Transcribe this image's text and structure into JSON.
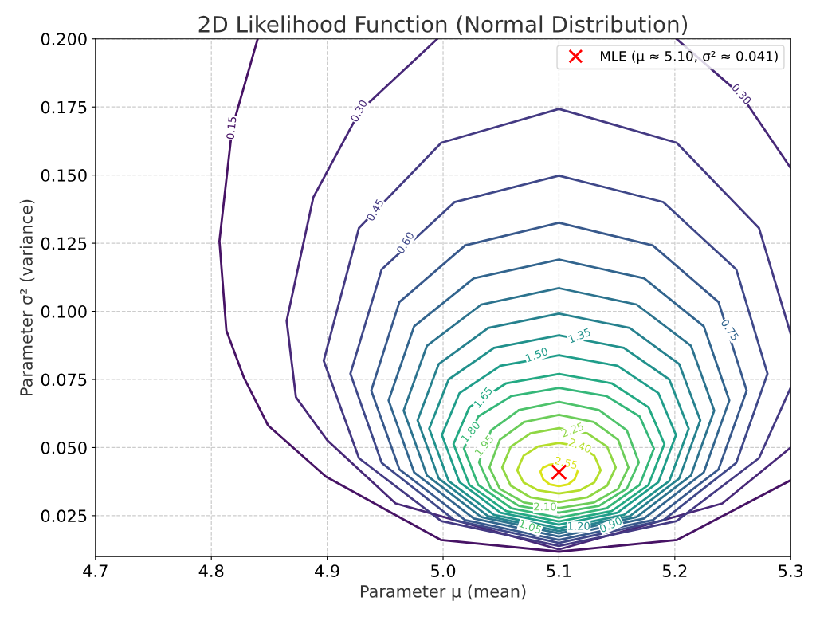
{
  "chart_data": {
    "type": "line",
    "title": "2D Likelihood Function (Normal Distribution)",
    "xlabel": "Parameter μ (mean)",
    "ylabel": "Parameter σ² (variance)",
    "xlim": [
      4.7,
      5.3
    ],
    "ylim": [
      0.01,
      0.2
    ],
    "xticks": [
      4.7,
      4.8,
      4.9,
      {
        "value": 5.0,
        "label": "5.0"
      },
      5.1,
      5.2,
      5.3
    ],
    "yticks": [
      {
        "value": 0.025,
        "label": "0.025"
      },
      {
        "value": 0.05,
        "label": "0.050"
      },
      {
        "value": 0.075,
        "label": "0.075"
      },
      {
        "value": 0.1,
        "label": "0.100"
      },
      {
        "value": 0.125,
        "label": "0.125"
      },
      {
        "value": 0.15,
        "label": "0.150"
      },
      {
        "value": 0.175,
        "label": "0.175"
      },
      {
        "value": 0.2,
        "label": "0.200"
      }
    ],
    "grid": true,
    "legend": "top right",
    "series": [
      {
        "color": "#471365",
        "x": [
          4.84,
          4.818,
          4.807,
          4.813,
          4.828,
          4.849,
          4.899,
          4.998,
          5.1,
          5.202,
          5.3
        ],
        "values": [
          0.2,
          0.1673,
          0.1258,
          0.0929,
          0.0758,
          0.0581,
          0.0393,
          0.0161,
          0.0118,
          0.0161,
          0.038
        ]
      },
      {
        "color": "#482878",
        "x": [
          4.995,
          4.928,
          4.888,
          4.865,
          4.873,
          4.9,
          4.959,
          5.1,
          5.241,
          5.3,
          null,
          5.2015,
          5.257,
          5.3
        ],
        "values": [
          0.2,
          0.1734,
          0.1418,
          0.0965,
          0.0685,
          0.0527,
          0.0295,
          0.0126,
          0.0295,
          0.05,
          null,
          0.2,
          0.1795,
          0.1526
        ]
      },
      {
        "color": "#443a83",
        "x": [
          5.3,
          5.2726,
          5.2015,
          5.1,
          4.9985,
          4.9274,
          4.897,
          4.9274,
          4.9985,
          5.1,
          5.2015,
          5.2726,
          5.3
        ],
        "values": [
          0.0917,
          0.1306,
          0.1619,
          0.1743,
          0.1619,
          0.1306,
          0.0819,
          0.0461,
          0.023,
          0.0139,
          0.023,
          0.0461,
          0.072
        ]
      },
      {
        "color": "#3f4889",
        "x": [
          5.1,
          5.01,
          4.947,
          4.92,
          4.947,
          5.01,
          5.1,
          5.19,
          5.253,
          5.28,
          5.253,
          5.19,
          5.1,
          5.01
        ],
        "values": [
          0.1498,
          0.1401,
          0.1154,
          0.0771,
          0.0444,
          0.0233,
          0.015,
          0.0233,
          0.0444,
          0.0771,
          0.1154,
          0.1401,
          0.1498,
          0.1401
        ]
      },
      {
        "color": "#38598c",
        "x": [
          5.1,
          5.019,
          4.9623,
          4.938,
          4.9623,
          5.019,
          5.1,
          5.181,
          5.2377,
          5.262,
          5.2377,
          5.181,
          5.1,
          5.019
        ],
        "values": [
          0.1325,
          0.1242,
          0.1034,
          0.0709,
          0.042,
          0.0234,
          0.0161,
          0.0234,
          0.042,
          0.0709,
          0.1034,
          0.1242,
          0.1325,
          0.1242
        ]
      },
      {
        "color": "#32658e",
        "x": [
          5.1,
          5.0265,
          4.975,
          4.953,
          4.975,
          5.0265,
          5.1,
          5.1735,
          5.225,
          5.247,
          5.225,
          5.1735,
          5.1,
          5.0265
        ],
        "values": [
          0.119,
          0.1121,
          0.0945,
          0.0673,
          0.0409,
          0.024,
          0.0173,
          0.024,
          0.0409,
          0.0673,
          0.0945,
          0.1121,
          0.119,
          0.1121
        ]
      },
      {
        "color": "#2c738e",
        "x": [
          5.1,
          5.033,
          4.986,
          4.966,
          4.986,
          5.033,
          5.1,
          5.167,
          5.214,
          5.234,
          5.214,
          5.167,
          5.1,
          5.033
        ],
        "values": [
          0.1085,
          0.1025,
          0.0873,
          0.0636,
          0.0398,
          0.0245,
          0.0185,
          0.0245,
          0.0398,
          0.0636,
          0.0873,
          0.1025,
          0.1085,
          0.1025
        ]
      },
      {
        "color": "#26818e",
        "x": [
          5.1,
          5.039,
          4.9963,
          4.978,
          4.9963,
          5.039,
          5.1,
          5.161,
          5.2037,
          5.222,
          5.2037,
          5.161,
          5.1,
          5.039
        ],
        "values": [
          0.0992,
          0.0939,
          0.0807,
          0.06,
          0.0386,
          0.0248,
          0.0194,
          0.0248,
          0.0386,
          0.06,
          0.0807,
          0.0939,
          0.0992,
          0.0939
        ]
      },
      {
        "color": "#21918c",
        "x": [
          5.1,
          5.044,
          5.0048,
          4.988,
          5.0048,
          5.044,
          5.1,
          5.156,
          5.1952,
          5.212,
          5.1952,
          5.156,
          5.1,
          5.044
        ],
        "values": [
          0.0912,
          0.0866,
          0.075,
          0.0569,
          0.0377,
          0.0253,
          0.0204,
          0.0253,
          0.0377,
          0.0569,
          0.075,
          0.0866,
          0.0912,
          0.0866
        ]
      },
      {
        "color": "#1f9d8a",
        "x": [
          5.1,
          5.0495,
          5.0142,
          4.999,
          5.0142,
          5.0495,
          5.1,
          5.1505,
          5.1858,
          5.201,
          5.1858,
          5.1505,
          5.1,
          5.0495
        ],
        "values": [
          0.0839,
          0.08,
          0.07,
          0.0546,
          0.0373,
          0.0261,
          0.0217,
          0.0261,
          0.0373,
          0.0546,
          0.07,
          0.08,
          0.0839,
          0.08
        ]
      },
      {
        "color": "#23a983",
        "x": [
          5.1,
          5.0545,
          5.0227,
          5.009,
          5.0227,
          5.0545,
          5.1,
          5.1455,
          5.1773,
          5.191,
          5.1773,
          5.1455,
          5.1,
          5.0545
        ],
        "values": [
          0.077,
          0.0736,
          0.0648,
          0.0513,
          0.0363,
          0.0267,
          0.0229,
          0.0267,
          0.0363,
          0.0513,
          0.0648,
          0.0736,
          0.077,
          0.0736
        ]
      },
      {
        "color": "#35b779",
        "x": [
          5.1,
          5.059,
          5.0303,
          5.018,
          5.0303,
          5.059,
          5.1,
          5.141,
          5.1697,
          5.182,
          5.1697,
          5.141,
          5.1,
          5.059
        ],
        "values": [
          0.0719,
          0.0689,
          0.0614,
          0.0496,
          0.0363,
          0.0277,
          0.0243,
          0.0277,
          0.0363,
          0.0496,
          0.0614,
          0.0689,
          0.0719,
          0.0689
        ]
      },
      {
        "color": "#4ec36b",
        "x": [
          5.1,
          5.0655,
          5.0414,
          5.031,
          5.0414,
          5.0655,
          5.1,
          5.1345,
          5.1586,
          5.169,
          5.1586,
          5.1345,
          5.1,
          5.0655
        ],
        "values": [
          0.0668,
          0.0638,
          0.0563,
          0.0446,
          0.0349,
          0.0286,
          0.0261,
          0.0286,
          0.0349,
          0.0446,
          0.0563,
          0.0638,
          0.0668,
          0.0638
        ]
      },
      {
        "color": "#6ccd5a",
        "x": [
          5.1,
          5.07,
          5.049,
          5.04,
          5.049,
          5.07,
          5.1,
          5.13,
          5.151,
          5.16,
          5.151,
          5.13,
          5.1,
          5.07
        ],
        "values": [
          0.062,
          0.0594,
          0.0529,
          0.0427,
          0.0348,
          0.0298,
          0.0278,
          0.0298,
          0.0348,
          0.0427,
          0.0529,
          0.0594,
          0.062,
          0.0594
        ]
      },
      {
        "color": "#8fd744",
        "x": [
          5.1,
          5.0755,
          5.0584,
          5.051,
          5.0584,
          5.0755,
          5.1,
          5.1245,
          5.1416,
          5.149,
          5.1416,
          5.1245,
          5.1,
          5.0755
        ],
        "values": [
          0.0571,
          0.0552,
          0.0503,
          0.0427,
          0.036,
          0.0317,
          0.03,
          0.0317,
          0.036,
          0.0427,
          0.0503,
          0.0552,
          0.0571,
          0.0552
        ]
      },
      {
        "color": "#b5de2b",
        "x": [
          5.1,
          5.082,
          5.0694,
          5.064,
          5.0694,
          5.082,
          5.1,
          5.118,
          5.1306,
          5.136,
          5.1306,
          5.118,
          5.1,
          5.082
        ],
        "values": [
          0.0517,
          0.0504,
          0.047,
          0.0417,
          0.0372,
          0.0343,
          0.0331,
          0.0343,
          0.0372,
          0.0417,
          0.047,
          0.0504,
          0.0517,
          0.0504
        ]
      },
      {
        "color": "#dae319",
        "x": [
          5.1,
          5.092,
          5.0864,
          5.084,
          5.0864,
          5.092,
          5.1,
          5.108,
          5.1136,
          5.116,
          5.1136,
          5.108,
          5.1,
          5.092
        ],
        "values": [
          0.0441,
          0.0437,
          0.0427,
          0.0412,
          0.0384,
          0.0365,
          0.0358,
          0.0365,
          0.0384,
          0.0412,
          0.0427,
          0.0437,
          0.0441,
          0.0437
        ]
      },
      {
        "type": "scatter",
        "name": "MLE (μ ≈ 5.10, σ² ≈ 0.041)",
        "color": "#ff0000",
        "marker": "cross",
        "x": [
          5.1
        ],
        "values": [
          0.041
        ]
      }
    ],
    "annotations": [
      {
        "text": "0.15",
        "x": 4.818,
        "y": 0.1673
      },
      {
        "text": "0.30",
        "x": 4.928,
        "y": 0.1734
      },
      {
        "text": "0.30",
        "x": 5.257,
        "y": 0.1795
      },
      {
        "text": "0.45",
        "x": 4.942,
        "y": 0.137
      },
      {
        "text": "0.60",
        "x": 4.968,
        "y": 0.125
      },
      {
        "text": "0.75",
        "x": 5.247,
        "y": 0.093
      },
      {
        "text": "0.90",
        "x": 5.145,
        "y": 0.0214
      },
      {
        "text": "1.05",
        "x": 5.075,
        "y": 0.0207
      },
      {
        "text": "1.20",
        "x": 5.117,
        "y": 0.0209
      },
      {
        "text": "1.35",
        "x": 5.118,
        "y": 0.0908
      },
      {
        "text": "1.50",
        "x": 5.081,
        "y": 0.0838
      },
      {
        "text": "1.65",
        "x": 5.035,
        "y": 0.0682
      },
      {
        "text": "1.80",
        "x": 5.0242,
        "y": 0.0555
      },
      {
        "text": "1.95",
        "x": 5.036,
        "y": 0.0505
      },
      {
        "text": "2.10",
        "x": 5.088,
        "y": 0.028
      },
      {
        "text": "2.25",
        "x": 5.112,
        "y": 0.0562
      },
      {
        "text": "2.40",
        "x": 5.118,
        "y": 0.0504
      },
      {
        "text": "2.55",
        "x": 5.106,
        "y": 0.0441
      }
    ]
  }
}
